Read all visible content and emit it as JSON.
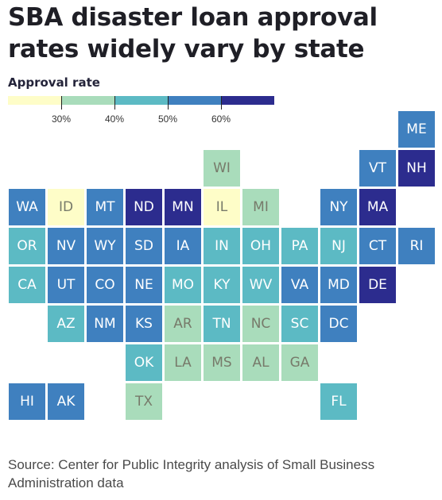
{
  "title": "SBA disaster loan approval rates widely vary by state",
  "legend": {
    "title": "Approval rate",
    "bins": [
      {
        "color": "#fefdc8"
      },
      {
        "color": "#a9dcbb"
      },
      {
        "color": "#5cbac4"
      },
      {
        "color": "#3f80bf"
      },
      {
        "color": "#2c2c8e"
      }
    ],
    "ticks": [
      "30%",
      "40%",
      "50%",
      "60%"
    ]
  },
  "colors": {
    "c1": "#fefdc8",
    "c2": "#a9dcbb",
    "c3": "#5cbac4",
    "c4": "#3f80bf",
    "c5": "#2c2c8e"
  },
  "states": [
    {
      "abbr": "ME",
      "col": 10,
      "row": 0,
      "bin": 4
    },
    {
      "abbr": "WI",
      "col": 5,
      "row": 1,
      "bin": 2
    },
    {
      "abbr": "VT",
      "col": 9,
      "row": 1,
      "bin": 4
    },
    {
      "abbr": "NH",
      "col": 10,
      "row": 1,
      "bin": 5
    },
    {
      "abbr": "WA",
      "col": 0,
      "row": 2,
      "bin": 4
    },
    {
      "abbr": "ID",
      "col": 1,
      "row": 2,
      "bin": 1
    },
    {
      "abbr": "MT",
      "col": 2,
      "row": 2,
      "bin": 4
    },
    {
      "abbr": "ND",
      "col": 3,
      "row": 2,
      "bin": 5
    },
    {
      "abbr": "MN",
      "col": 4,
      "row": 2,
      "bin": 5
    },
    {
      "abbr": "IL",
      "col": 5,
      "row": 2,
      "bin": 1
    },
    {
      "abbr": "MI",
      "col": 6,
      "row": 2,
      "bin": 2
    },
    {
      "abbr": "NY",
      "col": 8,
      "row": 2,
      "bin": 4
    },
    {
      "abbr": "MA",
      "col": 9,
      "row": 2,
      "bin": 5
    },
    {
      "abbr": "OR",
      "col": 0,
      "row": 3,
      "bin": 3
    },
    {
      "abbr": "NV",
      "col": 1,
      "row": 3,
      "bin": 4
    },
    {
      "abbr": "WY",
      "col": 2,
      "row": 3,
      "bin": 4
    },
    {
      "abbr": "SD",
      "col": 3,
      "row": 3,
      "bin": 4
    },
    {
      "abbr": "IA",
      "col": 4,
      "row": 3,
      "bin": 4
    },
    {
      "abbr": "IN",
      "col": 5,
      "row": 3,
      "bin": 3
    },
    {
      "abbr": "OH",
      "col": 6,
      "row": 3,
      "bin": 3
    },
    {
      "abbr": "PA",
      "col": 7,
      "row": 3,
      "bin": 3
    },
    {
      "abbr": "NJ",
      "col": 8,
      "row": 3,
      "bin": 3
    },
    {
      "abbr": "CT",
      "col": 9,
      "row": 3,
      "bin": 4
    },
    {
      "abbr": "RI",
      "col": 10,
      "row": 3,
      "bin": 4
    },
    {
      "abbr": "CA",
      "col": 0,
      "row": 4,
      "bin": 3
    },
    {
      "abbr": "UT",
      "col": 1,
      "row": 4,
      "bin": 4
    },
    {
      "abbr": "CO",
      "col": 2,
      "row": 4,
      "bin": 4
    },
    {
      "abbr": "NE",
      "col": 3,
      "row": 4,
      "bin": 4
    },
    {
      "abbr": "MO",
      "col": 4,
      "row": 4,
      "bin": 3
    },
    {
      "abbr": "KY",
      "col": 5,
      "row": 4,
      "bin": 3
    },
    {
      "abbr": "WV",
      "col": 6,
      "row": 4,
      "bin": 3
    },
    {
      "abbr": "VA",
      "col": 7,
      "row": 4,
      "bin": 4
    },
    {
      "abbr": "MD",
      "col": 8,
      "row": 4,
      "bin": 4
    },
    {
      "abbr": "DE",
      "col": 9,
      "row": 4,
      "bin": 5
    },
    {
      "abbr": "AZ",
      "col": 1,
      "row": 5,
      "bin": 3
    },
    {
      "abbr": "NM",
      "col": 2,
      "row": 5,
      "bin": 4
    },
    {
      "abbr": "KS",
      "col": 3,
      "row": 5,
      "bin": 4
    },
    {
      "abbr": "AR",
      "col": 4,
      "row": 5,
      "bin": 2
    },
    {
      "abbr": "TN",
      "col": 5,
      "row": 5,
      "bin": 3
    },
    {
      "abbr": "NC",
      "col": 6,
      "row": 5,
      "bin": 2
    },
    {
      "abbr": "SC",
      "col": 7,
      "row": 5,
      "bin": 3
    },
    {
      "abbr": "DC",
      "col": 8,
      "row": 5,
      "bin": 4
    },
    {
      "abbr": "OK",
      "col": 3,
      "row": 6,
      "bin": 3
    },
    {
      "abbr": "LA",
      "col": 4,
      "row": 6,
      "bin": 2
    },
    {
      "abbr": "MS",
      "col": 5,
      "row": 6,
      "bin": 2
    },
    {
      "abbr": "AL",
      "col": 6,
      "row": 6,
      "bin": 2
    },
    {
      "abbr": "GA",
      "col": 7,
      "row": 6,
      "bin": 2
    },
    {
      "abbr": "HI",
      "col": 0,
      "row": 7,
      "bin": 4
    },
    {
      "abbr": "AK",
      "col": 1,
      "row": 7,
      "bin": 4
    },
    {
      "abbr": "TX",
      "col": 3,
      "row": 7,
      "bin": 2
    },
    {
      "abbr": "FL",
      "col": 8,
      "row": 7,
      "bin": 3
    }
  ],
  "source": "Source: Center for Public Integrity analysis of Small Business Administration data"
}
